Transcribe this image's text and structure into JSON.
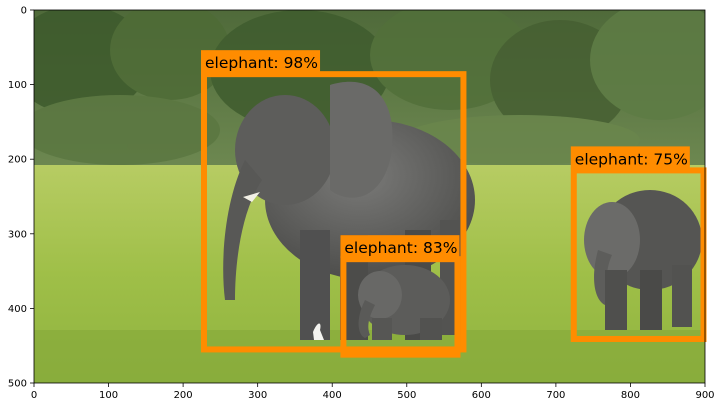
{
  "image": {
    "width": 900,
    "height": 500,
    "description_hidden": true
  },
  "axes": {
    "xlim": [
      0,
      900
    ],
    "ylim": [
      500,
      0
    ],
    "x_ticks": [
      0,
      100,
      200,
      300,
      400,
      500,
      600,
      700,
      800,
      900
    ],
    "y_ticks": [
      0,
      100,
      200,
      300,
      400,
      500
    ],
    "x_tick_labels": [
      "0",
      "100",
      "200",
      "300",
      "400",
      "500",
      "600",
      "700",
      "800",
      "900"
    ],
    "y_tick_labels": [
      "0",
      "100",
      "200",
      "300",
      "400",
      "500"
    ]
  },
  "box_color": "#ff8c00",
  "detections": [
    {
      "label": "elephant: 98%",
      "xmin": 228,
      "ymin": 86,
      "xmax": 576,
      "ymax": 455
    },
    {
      "label": "elephant: 83%",
      "xmin": 415,
      "ymin": 334,
      "xmax": 568,
      "ymax": 462
    },
    {
      "label": "elephant: 75%",
      "xmin": 724,
      "ymin": 215,
      "xmax": 898,
      "ymax": 441
    }
  ]
}
